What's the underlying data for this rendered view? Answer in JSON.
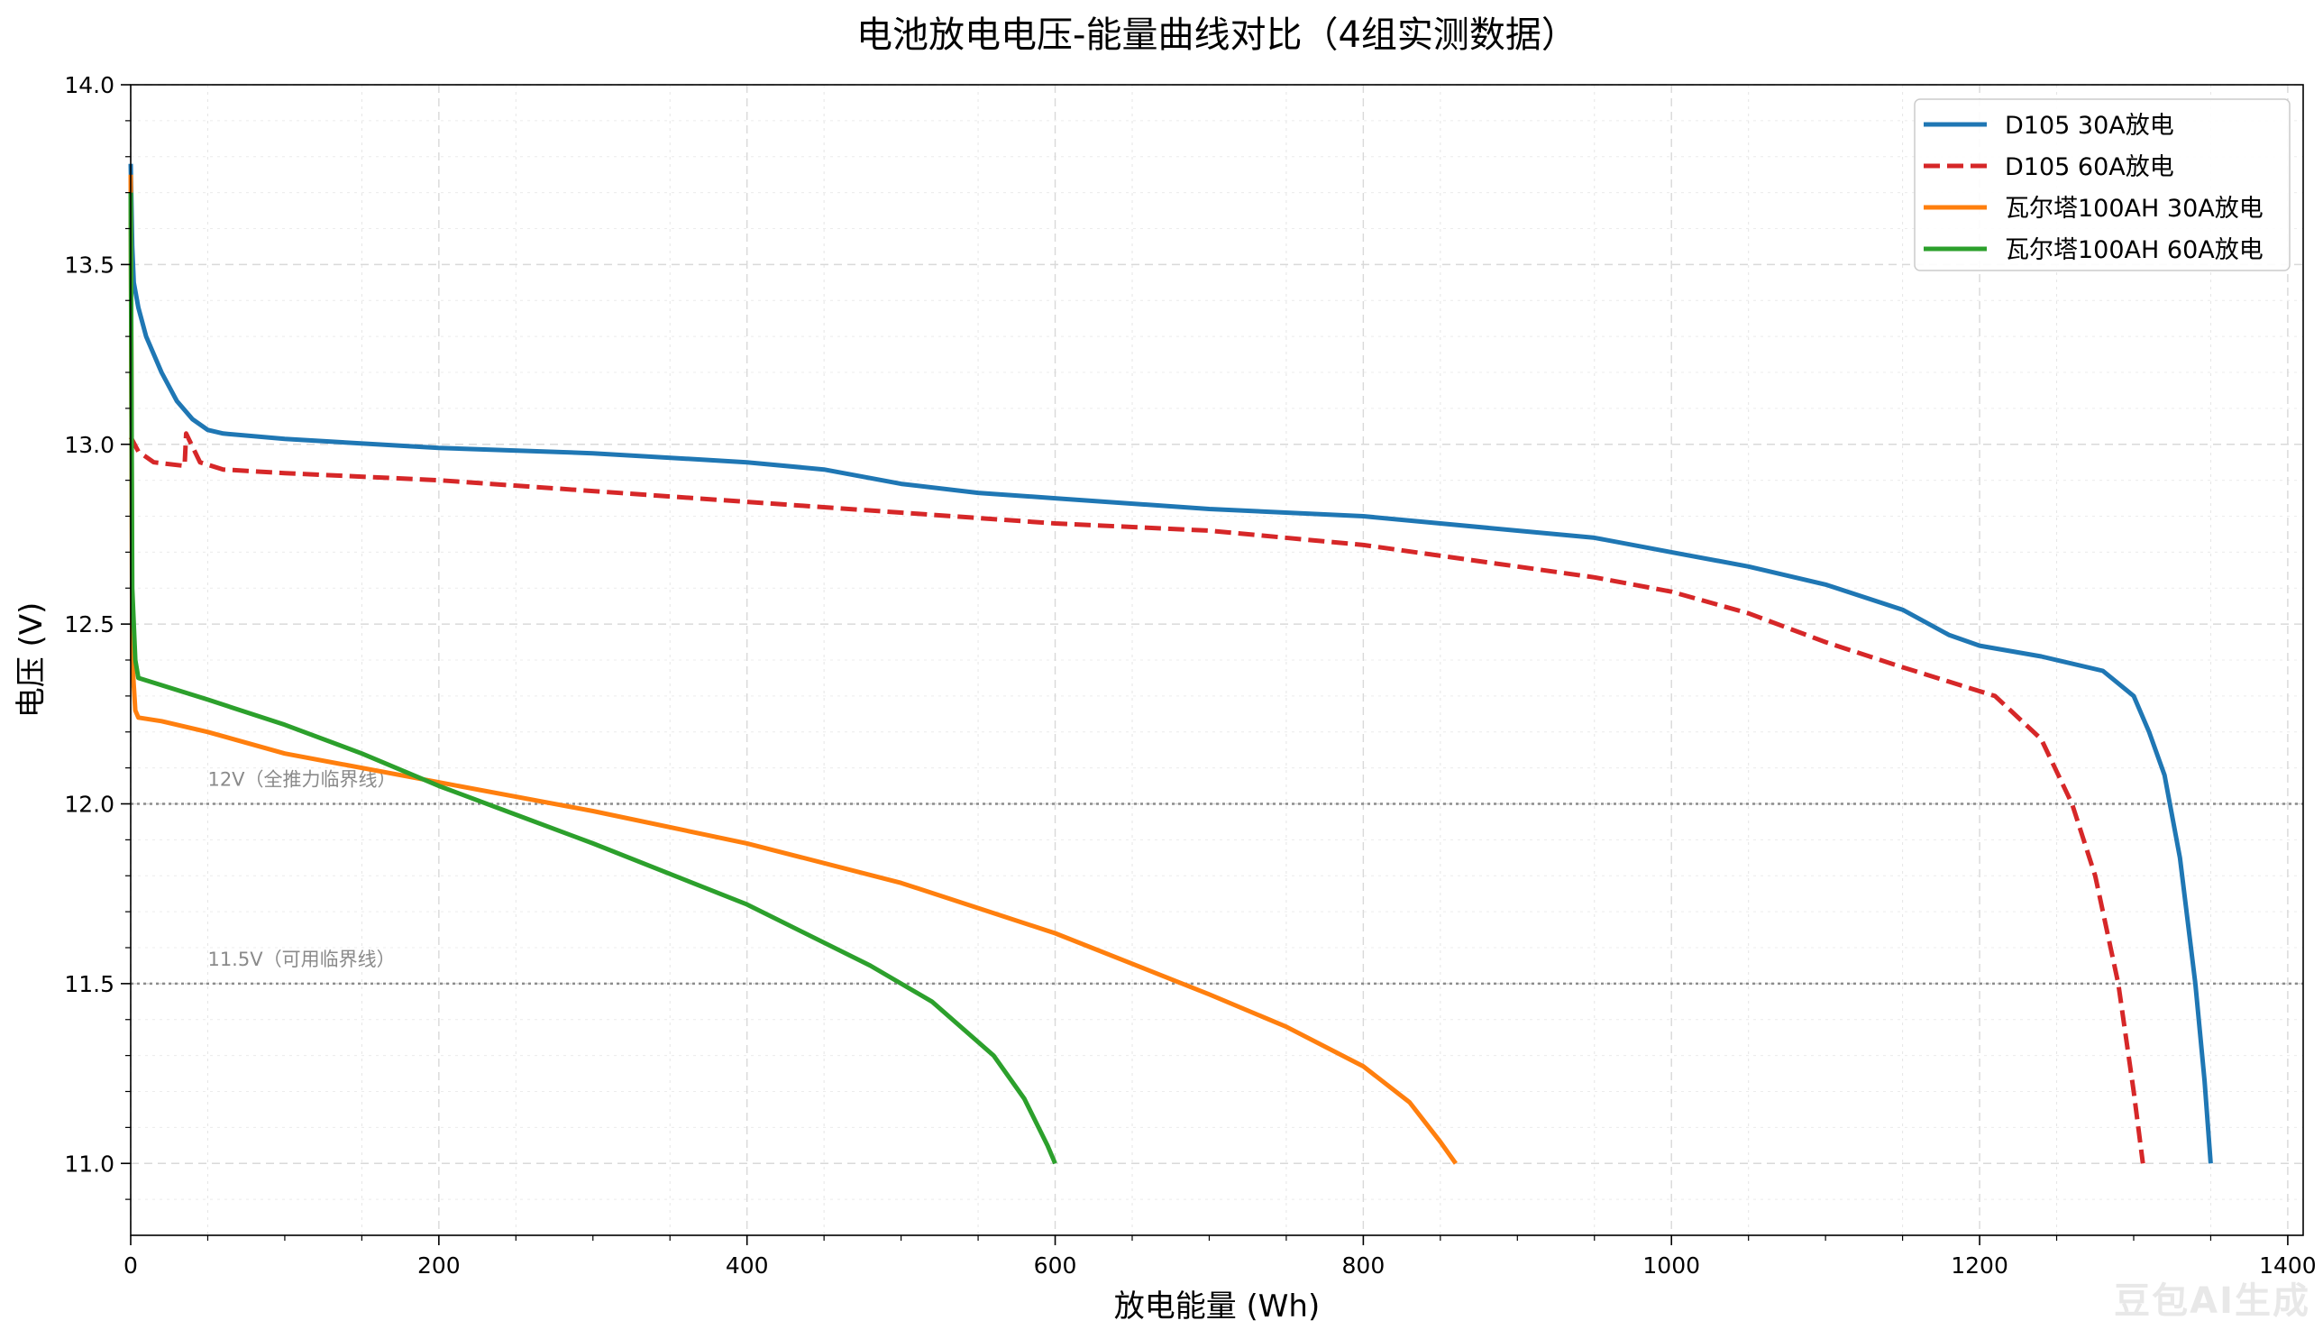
{
  "chart_data": {
    "type": "line",
    "title": "电池放电电压-能量曲线对比（4组实测数据）",
    "xlabel": "放电能量 (Wh)",
    "ylabel": "电压 (V)",
    "xlim": [
      0,
      1410
    ],
    "ylim": [
      10.8,
      14.0
    ],
    "xticks": [
      0,
      200,
      400,
      600,
      800,
      1000,
      1200,
      1400
    ],
    "yticks": [
      11.0,
      11.5,
      12.0,
      12.5,
      13.0,
      13.5,
      14.0
    ],
    "x_tick_labels": [
      "0",
      "200",
      "400",
      "600",
      "800",
      "1000",
      "1200",
      "1400"
    ],
    "y_tick_labels": [
      "11.0",
      "11.5",
      "12.0",
      "12.5",
      "13.0",
      "13.5",
      "14.0"
    ],
    "grid": true,
    "legend_position": "top-right",
    "reference_lines": [
      {
        "y": 12.0,
        "label": "12V（全推力临界线）"
      },
      {
        "y": 11.5,
        "label": "11.5V（可用临界线）"
      }
    ],
    "series": [
      {
        "name": "D105 30A放电",
        "color": "#1f77b4",
        "dash": "solid",
        "points": [
          [
            0,
            13.78
          ],
          [
            1,
            13.55
          ],
          [
            2,
            13.45
          ],
          [
            5,
            13.38
          ],
          [
            10,
            13.3
          ],
          [
            20,
            13.2
          ],
          [
            30,
            13.12
          ],
          [
            40,
            13.07
          ],
          [
            50,
            13.04
          ],
          [
            60,
            13.03
          ],
          [
            100,
            13.015
          ],
          [
            200,
            12.99
          ],
          [
            300,
            12.975
          ],
          [
            400,
            12.95
          ],
          [
            450,
            12.93
          ],
          [
            500,
            12.89
          ],
          [
            550,
            12.865
          ],
          [
            600,
            12.85
          ],
          [
            700,
            12.82
          ],
          [
            800,
            12.8
          ],
          [
            850,
            12.78
          ],
          [
            900,
            12.76
          ],
          [
            950,
            12.74
          ],
          [
            1000,
            12.7
          ],
          [
            1050,
            12.66
          ],
          [
            1100,
            12.61
          ],
          [
            1150,
            12.54
          ],
          [
            1180,
            12.47
          ],
          [
            1200,
            12.44
          ],
          [
            1240,
            12.41
          ],
          [
            1280,
            12.37
          ],
          [
            1300,
            12.3
          ],
          [
            1310,
            12.2
          ],
          [
            1320,
            12.08
          ],
          [
            1330,
            11.85
          ],
          [
            1340,
            11.5
          ],
          [
            1346,
            11.23
          ],
          [
            1350,
            11.0
          ]
        ]
      },
      {
        "name": "D105 60A放电",
        "color": "#d62728",
        "dash": "dashed",
        "points": [
          [
            0,
            13.02
          ],
          [
            5,
            12.98
          ],
          [
            15,
            12.95
          ],
          [
            35,
            12.94
          ],
          [
            36,
            13.03
          ],
          [
            45,
            12.95
          ],
          [
            60,
            12.93
          ],
          [
            100,
            12.92
          ],
          [
            200,
            12.9
          ],
          [
            300,
            12.87
          ],
          [
            400,
            12.84
          ],
          [
            500,
            12.81
          ],
          [
            600,
            12.78
          ],
          [
            700,
            12.76
          ],
          [
            800,
            12.72
          ],
          [
            900,
            12.66
          ],
          [
            950,
            12.63
          ],
          [
            1000,
            12.59
          ],
          [
            1050,
            12.53
          ],
          [
            1100,
            12.45
          ],
          [
            1150,
            12.38
          ],
          [
            1180,
            12.34
          ],
          [
            1210,
            12.3
          ],
          [
            1240,
            12.18
          ],
          [
            1260,
            12.0
          ],
          [
            1275,
            11.8
          ],
          [
            1290,
            11.5
          ],
          [
            1300,
            11.2
          ],
          [
            1306,
            11.0
          ]
        ]
      },
      {
        "name": "瓦尔塔100AH 30A放电",
        "color": "#ff7f0e",
        "dash": "solid",
        "points": [
          [
            0,
            13.75
          ],
          [
            1,
            12.4
          ],
          [
            3,
            12.26
          ],
          [
            5,
            12.24
          ],
          [
            20,
            12.23
          ],
          [
            50,
            12.2
          ],
          [
            100,
            12.14
          ],
          [
            200,
            12.06
          ],
          [
            300,
            11.98
          ],
          [
            400,
            11.89
          ],
          [
            500,
            11.78
          ],
          [
            600,
            11.64
          ],
          [
            700,
            11.47
          ],
          [
            750,
            11.38
          ],
          [
            800,
            11.27
          ],
          [
            830,
            11.17
          ],
          [
            850,
            11.06
          ],
          [
            860,
            11.0
          ]
        ]
      },
      {
        "name": "瓦尔塔100AH 60A放电",
        "color": "#2ca02c",
        "dash": "solid",
        "points": [
          [
            0,
            13.7
          ],
          [
            1,
            12.6
          ],
          [
            3,
            12.4
          ],
          [
            5,
            12.35
          ],
          [
            20,
            12.33
          ],
          [
            50,
            12.29
          ],
          [
            100,
            12.22
          ],
          [
            150,
            12.14
          ],
          [
            200,
            12.05
          ],
          [
            250,
            11.97
          ],
          [
            300,
            11.89
          ],
          [
            400,
            11.72
          ],
          [
            480,
            11.55
          ],
          [
            520,
            11.45
          ],
          [
            560,
            11.3
          ],
          [
            580,
            11.18
          ],
          [
            595,
            11.05
          ],
          [
            600,
            11.0
          ]
        ]
      }
    ]
  },
  "watermark": "豆包AI生成"
}
